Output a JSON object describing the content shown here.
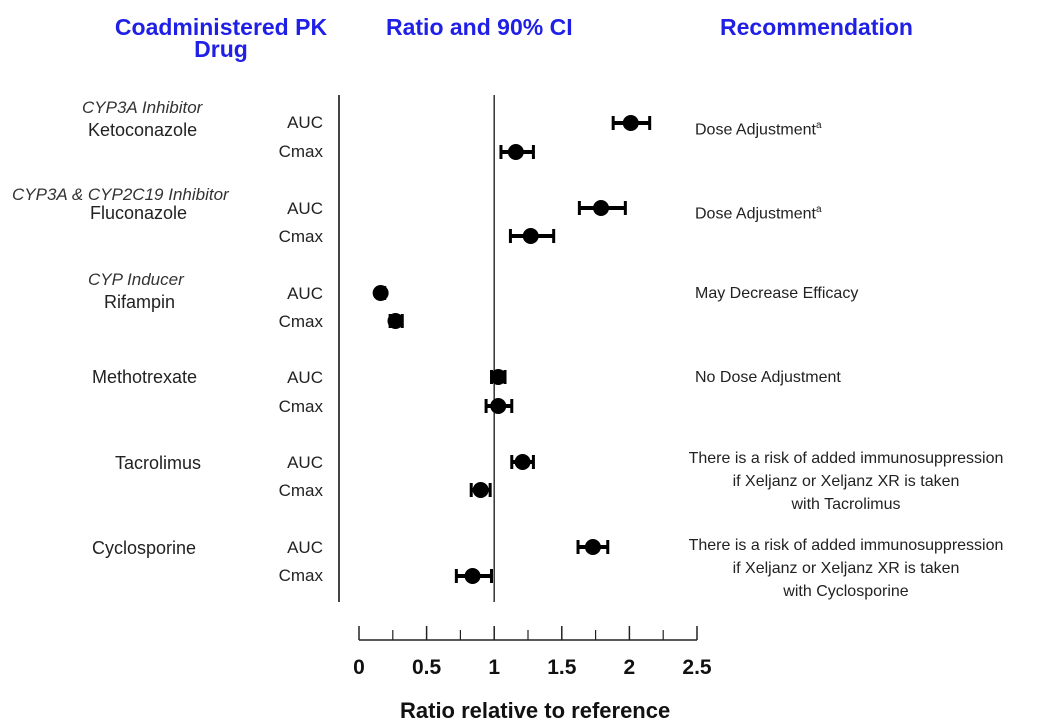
{
  "headers": {
    "drug": "Coadministered PK Drug",
    "ratio": "Ratio and 90% CI",
    "recommendation": "Recommendation"
  },
  "x_axis": {
    "title": "Ratio relative to reference",
    "ticks": [
      "0",
      "0.5",
      "1",
      "1.5",
      "2",
      "2.5"
    ]
  },
  "groups": [
    {
      "class": "CYP3A Inhibitor",
      "drug": "Ketoconazole",
      "metrics": [
        "AUC",
        "Cmax"
      ],
      "recommendation": "Dose Adjustment",
      "footnote": "a"
    },
    {
      "class": "CYP3A & CYP2C19 Inhibitor",
      "drug": "Fluconazole",
      "metrics": [
        "AUC",
        "Cmax"
      ],
      "recommendation": "Dose Adjustment",
      "footnote": "a"
    },
    {
      "class": "CYP Inducer",
      "drug": "Rifampin",
      "metrics": [
        "AUC",
        "Cmax"
      ],
      "recommendation": "May Decrease Efficacy"
    },
    {
      "class": "",
      "drug": "Methotrexate",
      "metrics": [
        "AUC",
        "Cmax"
      ],
      "recommendation": "No Dose Adjustment"
    },
    {
      "class": "",
      "drug": "Tacrolimus",
      "metrics": [
        "AUC",
        "Cmax"
      ],
      "recommendation_lines": [
        "There is a risk of added immunosuppression",
        "if Xeljanz or Xeljanz XR is taken",
        "with Tacrolimus"
      ]
    },
    {
      "class": "",
      "drug": "Cyclosporine",
      "metrics": [
        "AUC",
        "Cmax"
      ],
      "recommendation_lines": [
        "There is a risk of added immunosuppression",
        "if Xeljanz or Xeljanz XR is taken",
        "with Cyclosporine"
      ]
    }
  ],
  "chart_data": {
    "type": "forest",
    "xlabel": "Ratio relative to reference",
    "xlim": [
      0,
      2.5
    ],
    "reference_line": 1,
    "points": [
      {
        "drug": "Ketoconazole",
        "metric": "AUC",
        "estimate": 2.01,
        "ci": [
          1.88,
          2.15
        ]
      },
      {
        "drug": "Ketoconazole",
        "metric": "Cmax",
        "estimate": 1.16,
        "ci": [
          1.05,
          1.29
        ]
      },
      {
        "drug": "Fluconazole",
        "metric": "AUC",
        "estimate": 1.79,
        "ci": [
          1.63,
          1.97
        ]
      },
      {
        "drug": "Fluconazole",
        "metric": "Cmax",
        "estimate": 1.27,
        "ci": [
          1.12,
          1.44
        ]
      },
      {
        "drug": "Rifampin",
        "metric": "AUC",
        "estimate": 0.16,
        "ci": [
          0.14,
          0.19
        ]
      },
      {
        "drug": "Rifampin",
        "metric": "Cmax",
        "estimate": 0.27,
        "ci": [
          0.23,
          0.32
        ]
      },
      {
        "drug": "Methotrexate",
        "metric": "AUC",
        "estimate": 1.03,
        "ci": [
          0.98,
          1.08
        ]
      },
      {
        "drug": "Methotrexate",
        "metric": "Cmax",
        "estimate": 1.03,
        "ci": [
          0.94,
          1.13
        ]
      },
      {
        "drug": "Tacrolimus",
        "metric": "AUC",
        "estimate": 1.21,
        "ci": [
          1.13,
          1.29
        ]
      },
      {
        "drug": "Tacrolimus",
        "metric": "Cmax",
        "estimate": 0.9,
        "ci": [
          0.83,
          0.97
        ]
      },
      {
        "drug": "Cyclosporine",
        "metric": "AUC",
        "estimate": 1.73,
        "ci": [
          1.62,
          1.84
        ]
      },
      {
        "drug": "Cyclosporine",
        "metric": "Cmax",
        "estimate": 0.84,
        "ci": [
          0.72,
          0.98
        ]
      }
    ]
  }
}
